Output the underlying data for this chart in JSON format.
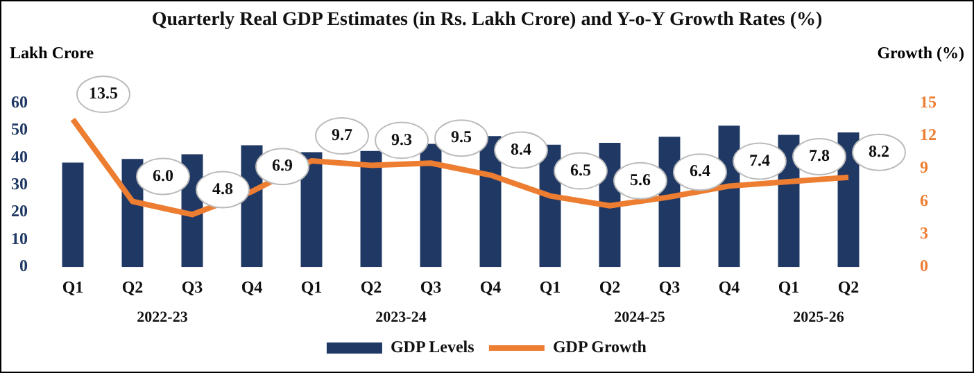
{
  "chart_data": {
    "type": "bar",
    "title": "Quarterly Real GDP Estimates (in Rs. Lakh Crore) and Y-o-Y Growth Rates (%)",
    "ylabel": "Lakh Crore",
    "y2label": "Growth (%)",
    "categories": [
      "Q1",
      "Q2",
      "Q3",
      "Q4",
      "Q1",
      "Q2",
      "Q3",
      "Q4",
      "Q1",
      "Q2",
      "Q3",
      "Q4",
      "Q1",
      "Q2"
    ],
    "annotations": [
      "2022-23",
      "2023-24",
      "2024-25",
      "2025-26"
    ],
    "series": [
      {
        "name": "GDP Levels",
        "color": "#1f3864",
        "values": [
          38.2,
          39.5,
          41.2,
          44.5,
          42.0,
          42.4,
          45.0,
          47.9,
          44.7,
          45.4,
          47.6,
          51.7,
          48.3,
          49.2
        ]
      },
      {
        "name": "GDP Growth",
        "type": "line",
        "axis": "y2",
        "color": "#ed7d31",
        "marker": "none",
        "values": [
          13.5,
          6.0,
          4.8,
          6.9,
          9.7,
          9.3,
          9.5,
          8.4,
          6.5,
          5.6,
          6.4,
          7.4,
          7.8,
          8.2
        ],
        "value_labels": [
          "13.5",
          "6.0",
          "4.8",
          "6.9",
          "9.7",
          "9.3",
          "9.5",
          "8.4",
          "6.5",
          "5.6",
          "6.4",
          "7.4",
          "7.8",
          "8.2"
        ]
      }
    ],
    "ylim": [
      0,
      60
    ],
    "yticks": [
      0,
      10,
      20,
      30,
      40,
      50,
      60
    ],
    "y2lim": [
      0,
      15
    ],
    "y2ticks": [
      0,
      3,
      6,
      9,
      12,
      15
    ],
    "grid": false,
    "legend": "bottom"
  }
}
